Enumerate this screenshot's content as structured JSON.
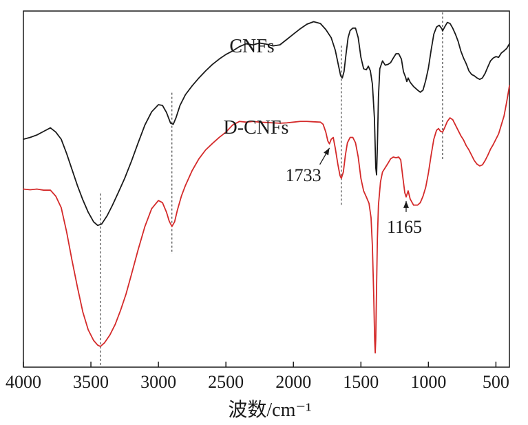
{
  "chart_data": {
    "type": "line",
    "title": "",
    "xlabel": "波数/cm⁻¹",
    "ylabel": "",
    "xlim": [
      4000,
      400
    ],
    "x_reversed": true,
    "xticks": [
      4000,
      3500,
      3000,
      2500,
      2000,
      1500,
      1000,
      500
    ],
    "yticks_shown": false,
    "grid": false,
    "legend": "none",
    "series": [
      {
        "name": "CNFs",
        "color": "#1a1a1a",
        "points": [
          [
            4000,
            0.64
          ],
          [
            3950,
            0.645
          ],
          [
            3900,
            0.652
          ],
          [
            3850,
            0.662
          ],
          [
            3800,
            0.672
          ],
          [
            3760,
            0.66
          ],
          [
            3720,
            0.64
          ],
          [
            3680,
            0.6
          ],
          [
            3640,
            0.555
          ],
          [
            3600,
            0.51
          ],
          [
            3560,
            0.47
          ],
          [
            3520,
            0.435
          ],
          [
            3480,
            0.408
          ],
          [
            3450,
            0.398
          ],
          [
            3420,
            0.402
          ],
          [
            3380,
            0.425
          ],
          [
            3340,
            0.455
          ],
          [
            3300,
            0.488
          ],
          [
            3250,
            0.53
          ],
          [
            3200,
            0.578
          ],
          [
            3150,
            0.63
          ],
          [
            3100,
            0.68
          ],
          [
            3050,
            0.717
          ],
          [
            3000,
            0.737
          ],
          [
            2970,
            0.735
          ],
          [
            2940,
            0.715
          ],
          [
            2910,
            0.685
          ],
          [
            2890,
            0.682
          ],
          [
            2870,
            0.7
          ],
          [
            2840,
            0.735
          ],
          [
            2800,
            0.765
          ],
          [
            2750,
            0.79
          ],
          [
            2700,
            0.812
          ],
          [
            2650,
            0.832
          ],
          [
            2600,
            0.85
          ],
          [
            2550,
            0.865
          ],
          [
            2500,
            0.878
          ],
          [
            2450,
            0.888
          ],
          [
            2400,
            0.9
          ],
          [
            2350,
            0.908
          ],
          [
            2300,
            0.905
          ],
          [
            2250,
            0.91
          ],
          [
            2200,
            0.907
          ],
          [
            2150,
            0.902
          ],
          [
            2100,
            0.905
          ],
          [
            2050,
            0.92
          ],
          [
            2000,
            0.935
          ],
          [
            1950,
            0.95
          ],
          [
            1900,
            0.963
          ],
          [
            1850,
            0.97
          ],
          [
            1800,
            0.965
          ],
          [
            1760,
            0.948
          ],
          [
            1720,
            0.925
          ],
          [
            1690,
            0.89
          ],
          [
            1665,
            0.845
          ],
          [
            1650,
            0.818
          ],
          [
            1638,
            0.812
          ],
          [
            1625,
            0.83
          ],
          [
            1610,
            0.88
          ],
          [
            1595,
            0.925
          ],
          [
            1580,
            0.945
          ],
          [
            1560,
            0.952
          ],
          [
            1540,
            0.952
          ],
          [
            1520,
            0.925
          ],
          [
            1500,
            0.87
          ],
          [
            1480,
            0.838
          ],
          [
            1460,
            0.835
          ],
          [
            1445,
            0.845
          ],
          [
            1430,
            0.832
          ],
          [
            1415,
            0.795
          ],
          [
            1400,
            0.7
          ],
          [
            1390,
            0.56
          ],
          [
            1384,
            0.54
          ],
          [
            1378,
            0.62
          ],
          [
            1370,
            0.76
          ],
          [
            1360,
            0.838
          ],
          [
            1340,
            0.86
          ],
          [
            1320,
            0.848
          ],
          [
            1300,
            0.85
          ],
          [
            1280,
            0.855
          ],
          [
            1260,
            0.868
          ],
          [
            1240,
            0.88
          ],
          [
            1220,
            0.88
          ],
          [
            1200,
            0.865
          ],
          [
            1185,
            0.83
          ],
          [
            1170,
            0.815
          ],
          [
            1160,
            0.802
          ],
          [
            1150,
            0.812
          ],
          [
            1135,
            0.8
          ],
          [
            1110,
            0.788
          ],
          [
            1080,
            0.778
          ],
          [
            1060,
            0.772
          ],
          [
            1040,
            0.778
          ],
          [
            1020,
            0.805
          ],
          [
            1000,
            0.84
          ],
          [
            980,
            0.89
          ],
          [
            960,
            0.935
          ],
          [
            940,
            0.955
          ],
          [
            920,
            0.96
          ],
          [
            900,
            0.95
          ],
          [
            895,
            0.944
          ],
          [
            880,
            0.955
          ],
          [
            860,
            0.968
          ],
          [
            840,
            0.965
          ],
          [
            820,
            0.952
          ],
          [
            800,
            0.935
          ],
          [
            780,
            0.915
          ],
          [
            760,
            0.888
          ],
          [
            740,
            0.868
          ],
          [
            720,
            0.852
          ],
          [
            700,
            0.832
          ],
          [
            680,
            0.822
          ],
          [
            660,
            0.818
          ],
          [
            640,
            0.812
          ],
          [
            620,
            0.808
          ],
          [
            600,
            0.812
          ],
          [
            580,
            0.825
          ],
          [
            560,
            0.843
          ],
          [
            540,
            0.86
          ],
          [
            520,
            0.868
          ],
          [
            500,
            0.872
          ],
          [
            480,
            0.87
          ],
          [
            460,
            0.882
          ],
          [
            440,
            0.888
          ],
          [
            420,
            0.895
          ],
          [
            400,
            0.908
          ]
        ]
      },
      {
        "name": "D-CNFs",
        "color": "#d42a2a",
        "points": [
          [
            4000,
            0.5
          ],
          [
            3950,
            0.498
          ],
          [
            3900,
            0.5
          ],
          [
            3850,
            0.497
          ],
          [
            3800,
            0.497
          ],
          [
            3760,
            0.48
          ],
          [
            3720,
            0.448
          ],
          [
            3680,
            0.38
          ],
          [
            3640,
            0.3
          ],
          [
            3600,
            0.225
          ],
          [
            3560,
            0.155
          ],
          [
            3520,
            0.105
          ],
          [
            3480,
            0.075
          ],
          [
            3450,
            0.062
          ],
          [
            3430,
            0.058
          ],
          [
            3400,
            0.068
          ],
          [
            3360,
            0.09
          ],
          [
            3320,
            0.12
          ],
          [
            3280,
            0.16
          ],
          [
            3240,
            0.205
          ],
          [
            3200,
            0.26
          ],
          [
            3150,
            0.33
          ],
          [
            3100,
            0.395
          ],
          [
            3050,
            0.445
          ],
          [
            3000,
            0.468
          ],
          [
            2970,
            0.462
          ],
          [
            2940,
            0.435
          ],
          [
            2920,
            0.41
          ],
          [
            2900,
            0.395
          ],
          [
            2880,
            0.408
          ],
          [
            2860,
            0.44
          ],
          [
            2830,
            0.48
          ],
          [
            2800,
            0.51
          ],
          [
            2750,
            0.552
          ],
          [
            2700,
            0.585
          ],
          [
            2650,
            0.61
          ],
          [
            2600,
            0.628
          ],
          [
            2550,
            0.645
          ],
          [
            2500,
            0.66
          ],
          [
            2450,
            0.68
          ],
          [
            2400,
            0.69
          ],
          [
            2350,
            0.688
          ],
          [
            2300,
            0.69
          ],
          [
            2250,
            0.688
          ],
          [
            2200,
            0.687
          ],
          [
            2150,
            0.686
          ],
          [
            2100,
            0.685
          ],
          [
            2050,
            0.686
          ],
          [
            2000,
            0.688
          ],
          [
            1950,
            0.69
          ],
          [
            1900,
            0.69
          ],
          [
            1850,
            0.689
          ],
          [
            1800,
            0.688
          ],
          [
            1780,
            0.682
          ],
          [
            1760,
            0.66
          ],
          [
            1745,
            0.635
          ],
          [
            1733,
            0.627
          ],
          [
            1720,
            0.64
          ],
          [
            1705,
            0.645
          ],
          [
            1690,
            0.615
          ],
          [
            1670,
            0.568
          ],
          [
            1655,
            0.538
          ],
          [
            1645,
            0.53
          ],
          [
            1630,
            0.548
          ],
          [
            1615,
            0.595
          ],
          [
            1600,
            0.63
          ],
          [
            1580,
            0.645
          ],
          [
            1560,
            0.645
          ],
          [
            1540,
            0.63
          ],
          [
            1520,
            0.59
          ],
          [
            1500,
            0.53
          ],
          [
            1480,
            0.495
          ],
          [
            1460,
            0.478
          ],
          [
            1440,
            0.46
          ],
          [
            1425,
            0.42
          ],
          [
            1415,
            0.34
          ],
          [
            1405,
            0.2
          ],
          [
            1398,
            0.075
          ],
          [
            1394,
            0.04
          ],
          [
            1390,
            0.08
          ],
          [
            1385,
            0.2
          ],
          [
            1378,
            0.36
          ],
          [
            1370,
            0.455
          ],
          [
            1355,
            0.52
          ],
          [
            1340,
            0.548
          ],
          [
            1320,
            0.56
          ],
          [
            1300,
            0.572
          ],
          [
            1280,
            0.585
          ],
          [
            1260,
            0.59
          ],
          [
            1240,
            0.588
          ],
          [
            1220,
            0.59
          ],
          [
            1205,
            0.582
          ],
          [
            1190,
            0.535
          ],
          [
            1175,
            0.49
          ],
          [
            1165,
            0.478
          ],
          [
            1150,
            0.495
          ],
          [
            1135,
            0.472
          ],
          [
            1110,
            0.455
          ],
          [
            1080,
            0.455
          ],
          [
            1060,
            0.462
          ],
          [
            1040,
            0.48
          ],
          [
            1020,
            0.505
          ],
          [
            1000,
            0.545
          ],
          [
            980,
            0.595
          ],
          [
            960,
            0.64
          ],
          [
            940,
            0.665
          ],
          [
            925,
            0.67
          ],
          [
            910,
            0.662
          ],
          [
            895,
            0.66
          ],
          [
            880,
            0.672
          ],
          [
            860,
            0.69
          ],
          [
            840,
            0.7
          ],
          [
            820,
            0.695
          ],
          [
            800,
            0.68
          ],
          [
            780,
            0.665
          ],
          [
            760,
            0.65
          ],
          [
            740,
            0.638
          ],
          [
            720,
            0.622
          ],
          [
            700,
            0.61
          ],
          [
            680,
            0.595
          ],
          [
            660,
            0.58
          ],
          [
            640,
            0.57
          ],
          [
            620,
            0.565
          ],
          [
            600,
            0.568
          ],
          [
            580,
            0.58
          ],
          [
            560,
            0.595
          ],
          [
            540,
            0.612
          ],
          [
            520,
            0.625
          ],
          [
            500,
            0.64
          ],
          [
            480,
            0.655
          ],
          [
            460,
            0.68
          ],
          [
            440,
            0.705
          ],
          [
            420,
            0.745
          ],
          [
            400,
            0.79
          ]
        ]
      }
    ],
    "reference_lines_x": [
      3430,
      2900,
      1645,
      895
    ],
    "annotations": [
      {
        "text": "1733",
        "x": 1733,
        "series": "D-CNFs"
      },
      {
        "text": "1165",
        "x": 1165,
        "series": "D-CNFs"
      }
    ]
  }
}
